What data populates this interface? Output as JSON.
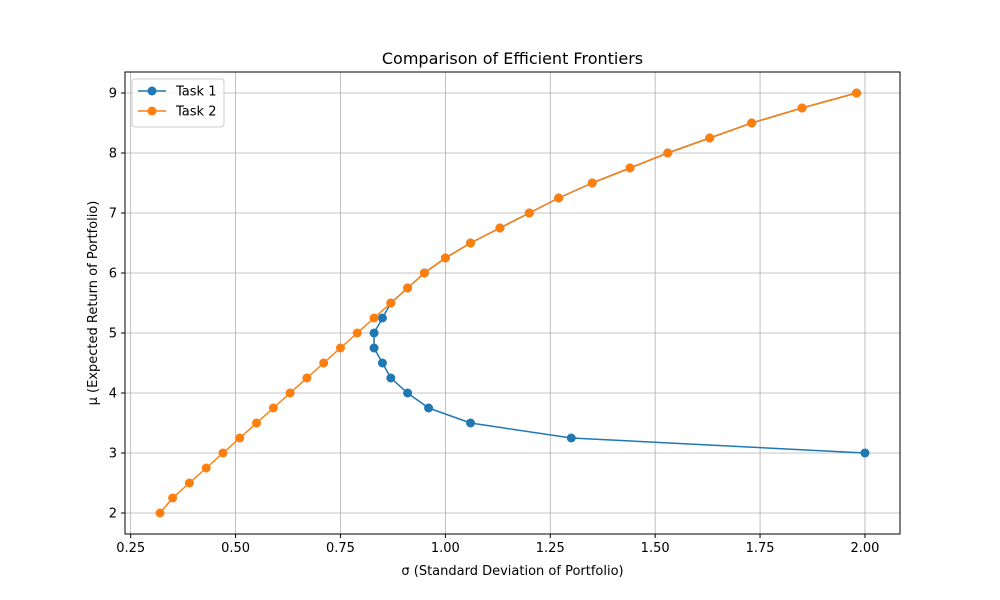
{
  "chart_data": {
    "type": "line",
    "title": "Comparison of Efficient Frontiers",
    "xlabel": "σ (Standard Deviation of Portfolio)",
    "ylabel": "μ (Expected Return of Portfolio)",
    "xlim": [
      0.2365,
      2.0835
    ],
    "ylim": [
      1.65,
      9.35
    ],
    "xticks": [
      0.25,
      0.5,
      0.75,
      1.0,
      1.25,
      1.5,
      1.75,
      2.0
    ],
    "xtick_labels": [
      "0.25",
      "0.50",
      "0.75",
      "1.00",
      "1.25",
      "1.50",
      "1.75",
      "2.00"
    ],
    "yticks": [
      2,
      3,
      4,
      5,
      6,
      7,
      8,
      9
    ],
    "ytick_labels": [
      "2",
      "3",
      "4",
      "5",
      "6",
      "7",
      "8",
      "9"
    ],
    "grid": true,
    "legend_position": "top-left",
    "series": [
      {
        "name": "Task 1",
        "color": "#1f77b4",
        "marker": "circle",
        "x": [
          2.0,
          1.3,
          1.06,
          0.96,
          0.91,
          0.87,
          0.85,
          0.83,
          0.83,
          0.85,
          0.87,
          0.91,
          0.95,
          1.0,
          1.06,
          1.13,
          1.2,
          1.27,
          1.35,
          1.44,
          1.53,
          1.63,
          1.73,
          1.85,
          1.98
        ],
        "y": [
          3.0,
          3.25,
          3.5,
          3.75,
          4.0,
          4.25,
          4.5,
          4.75,
          5.0,
          5.25,
          5.5,
          5.75,
          6.0,
          6.25,
          6.5,
          6.75,
          7.0,
          7.25,
          7.5,
          7.75,
          8.0,
          8.25,
          8.5,
          8.75,
          9.0
        ]
      },
      {
        "name": "Task 2",
        "color": "#ff7f0e",
        "marker": "circle",
        "x": [
          0.32,
          0.35,
          0.39,
          0.43,
          0.47,
          0.51,
          0.55,
          0.59,
          0.63,
          0.67,
          0.71,
          0.75,
          0.79,
          0.83,
          0.87,
          0.91,
          0.95,
          1.0,
          1.06,
          1.13,
          1.2,
          1.27,
          1.35,
          1.44,
          1.53,
          1.63,
          1.73,
          1.85,
          1.98
        ],
        "y": [
          2.0,
          2.25,
          2.5,
          2.75,
          3.0,
          3.25,
          3.5,
          3.75,
          4.0,
          4.25,
          4.5,
          4.75,
          5.0,
          5.25,
          5.5,
          5.75,
          6.0,
          6.25,
          6.5,
          6.75,
          7.0,
          7.25,
          7.5,
          7.75,
          8.0,
          8.25,
          8.5,
          8.75,
          9.0
        ]
      }
    ]
  }
}
